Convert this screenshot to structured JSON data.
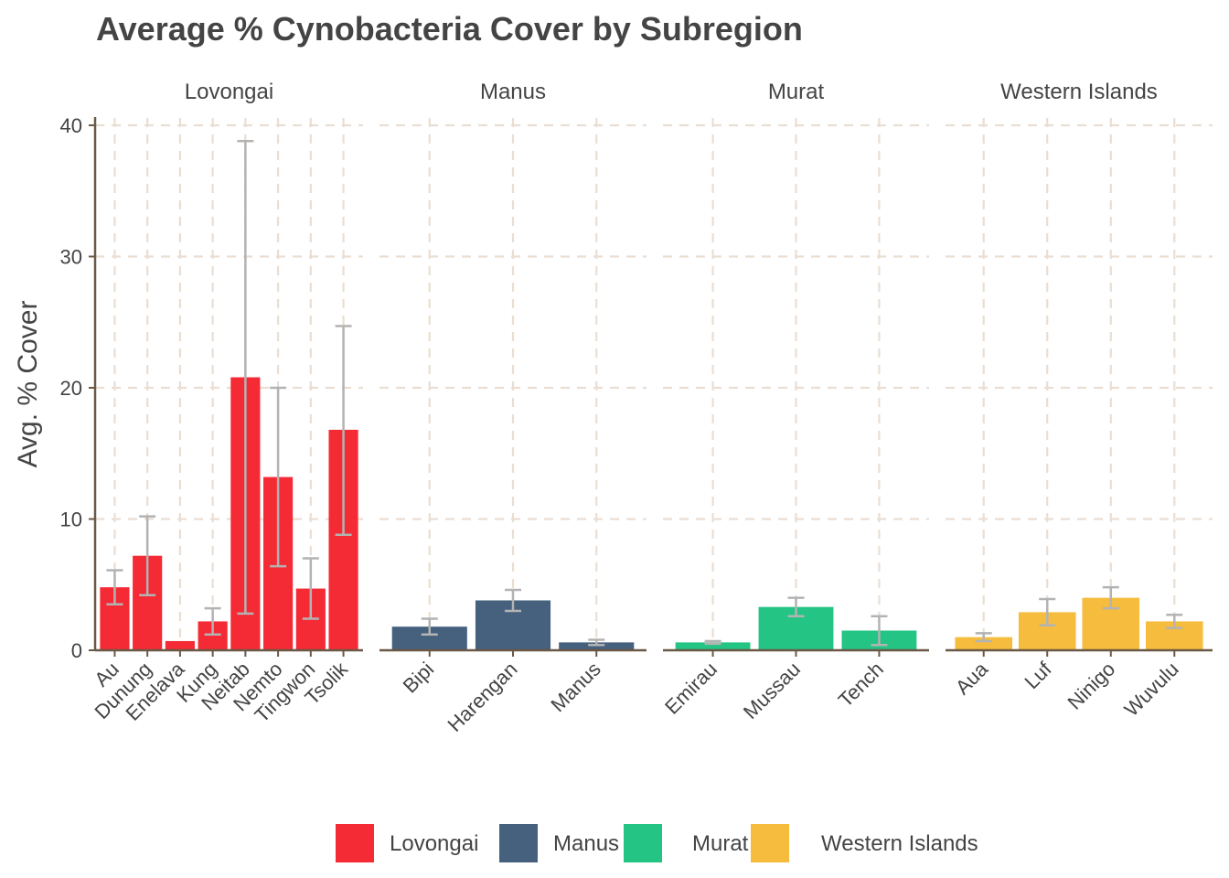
{
  "chart_data": {
    "type": "bar",
    "title": "Average % Cynobacteria Cover by Subregion",
    "xlabel": "",
    "ylabel": "Avg. % Cover",
    "ylim": [
      0,
      40
    ],
    "yticks": [
      0,
      10,
      20,
      30,
      40
    ],
    "grid": true,
    "legend_position": "bottom",
    "facets": [
      {
        "name": "Lovongai",
        "color": "#f42a35",
        "categories": [
          "Au",
          "Dunung",
          "Enelava",
          "Kung",
          "Neitab",
          "Nemto",
          "Tingwon",
          "Tsolik"
        ],
        "values": [
          4.8,
          7.2,
          0.7,
          2.2,
          20.8,
          13.2,
          4.7,
          16.8
        ],
        "error_low": [
          3.5,
          4.2,
          null,
          1.2,
          2.8,
          6.4,
          2.4,
          8.8
        ],
        "error_high": [
          6.1,
          10.2,
          null,
          3.2,
          38.8,
          20.0,
          7.0,
          24.7
        ]
      },
      {
        "name": "Manus",
        "color": "#45617e",
        "categories": [
          "Bipi",
          "Harengan",
          "Manus"
        ],
        "values": [
          1.8,
          3.8,
          0.6
        ],
        "error_low": [
          1.2,
          3.0,
          0.4
        ],
        "error_high": [
          2.4,
          4.6,
          0.8
        ]
      },
      {
        "name": "Murat",
        "color": "#23c484",
        "categories": [
          "Emirau",
          "Mussau",
          "Tench"
        ],
        "values": [
          0.6,
          3.3,
          1.5
        ],
        "error_low": [
          0.5,
          2.6,
          0.4
        ],
        "error_high": [
          0.7,
          4.0,
          2.6
        ]
      },
      {
        "name": "Western Islands",
        "color": "#f5bc3d",
        "categories": [
          "Aua",
          "Luf",
          "Ninigo",
          "Wuvulu"
        ],
        "values": [
          1.0,
          2.9,
          4.0,
          2.2
        ],
        "error_low": [
          0.7,
          1.9,
          3.2,
          1.7
        ],
        "error_high": [
          1.3,
          3.9,
          4.8,
          2.7
        ]
      }
    ],
    "legend": [
      "Lovongai",
      "Manus",
      "Murat",
      "Western Islands"
    ],
    "error_bar_color": "#b3b3b3",
    "grid_color": "#eaded2",
    "axis_color": "#6b5846"
  }
}
